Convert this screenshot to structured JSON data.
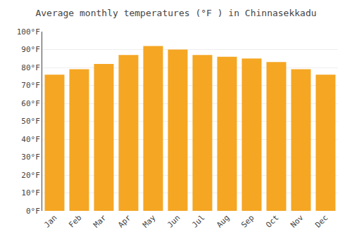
{
  "chart_data": {
    "type": "bar",
    "title": "Average monthly temperatures (°F ) in Chinnasekkadu",
    "categories": [
      "Jan",
      "Feb",
      "Mar",
      "Apr",
      "May",
      "Jun",
      "Jul",
      "Aug",
      "Sep",
      "Oct",
      "Nov",
      "Dec"
    ],
    "values": [
      76,
      79,
      82,
      87,
      92,
      90,
      87,
      86,
      85,
      83,
      79,
      76
    ],
    "color": "#F5A623",
    "ylim": [
      0,
      100
    ],
    "yticks": [
      {
        "value": 0,
        "label": "0°F"
      },
      {
        "value": 10,
        "label": "10°F"
      },
      {
        "value": 20,
        "label": "20°F"
      },
      {
        "value": 30,
        "label": "30°F"
      },
      {
        "value": 40,
        "label": "40°F"
      },
      {
        "value": 50,
        "label": "50°F"
      },
      {
        "value": 60,
        "label": "60°F"
      },
      {
        "value": 70,
        "label": "70°F"
      },
      {
        "value": 80,
        "label": "80°F"
      },
      {
        "value": 90,
        "label": "90°F"
      },
      {
        "value": 100,
        "label": "100°F"
      }
    ],
    "grid": true
  }
}
